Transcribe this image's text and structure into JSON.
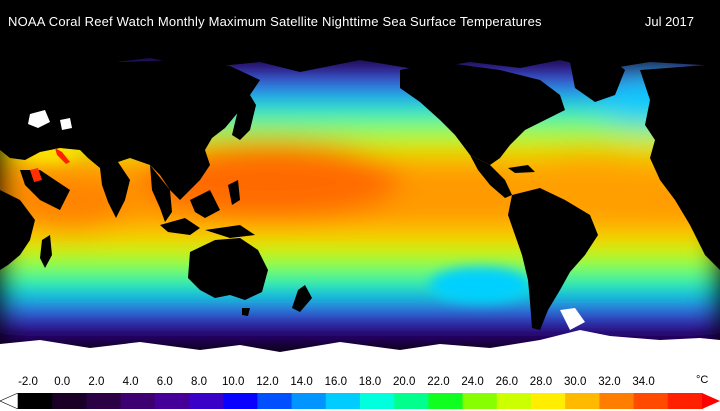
{
  "title": "NOAA Coral Reef Watch Monthly Maximum Satellite Nighttime Sea Surface Temperatures",
  "date": "Jul 2017",
  "legend": {
    "unit": "°C",
    "ticks": [
      "-2.0",
      "0.0",
      "2.0",
      "4.0",
      "6.0",
      "8.0",
      "10.0",
      "12.0",
      "14.0",
      "16.0",
      "18.0",
      "20.0",
      "22.0",
      "24.0",
      "26.0",
      "28.0",
      "30.0",
      "32.0",
      "34.0"
    ],
    "colors": [
      "#ffffff",
      "#000000",
      "#1a0026",
      "#2c0044",
      "#3d0070",
      "#46009a",
      "#3a00c8",
      "#0a00ff",
      "#0050ff",
      "#0095ff",
      "#00ccff",
      "#00ffdd",
      "#00ff8c",
      "#10ff20",
      "#88ff00",
      "#ccff00",
      "#ffee00",
      "#ffba00",
      "#ff7e00",
      "#ff4a00",
      "#ff2000",
      "#ff0000"
    ]
  }
}
